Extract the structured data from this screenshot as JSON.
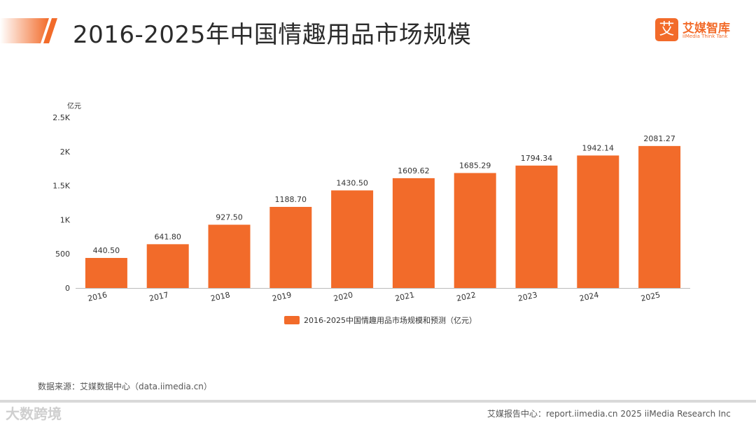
{
  "header": {
    "title": "2016-2025年中国情趣用品市场规模",
    "logo_mark": "艾",
    "logo_name": "艾媒智库",
    "logo_sub": "iiMedia Think Tank"
  },
  "chart_data": {
    "type": "bar",
    "title": "2016-2025年中国情趣用品市场规模",
    "ylabel": "亿元",
    "xlabel": "",
    "ylim": [
      0,
      2500
    ],
    "yticks": [
      0,
      500,
      1000,
      1500,
      2000,
      2500
    ],
    "ytick_labels": [
      "0",
      "500",
      "1K",
      "1.5K",
      "2K",
      "2.5K"
    ],
    "categories": [
      "2016",
      "2017",
      "2018",
      "2019",
      "2020",
      "2021",
      "2022",
      "2023",
      "2024",
      "2025"
    ],
    "series": [
      {
        "name": "2016-2025中国情趣用品市场规模和预测（亿元）",
        "values": [
          440.5,
          641.8,
          927.5,
          1188.7,
          1430.5,
          1609.62,
          1685.29,
          1794.34,
          1942.14,
          2081.27
        ],
        "labels": [
          "440.50",
          "641.80",
          "927.50",
          "1188.70",
          "1430.50",
          "1609.62",
          "1685.29",
          "1794.34",
          "1942.14",
          "2081.27"
        ]
      }
    ],
    "legend_position": "bottom",
    "grid": false,
    "colors": {
      "bar": "#f26b2a"
    }
  },
  "footer": {
    "source": "数据来源：艾媒数据中心（data.iimedia.cn）",
    "report": "艾媒报告中心：report.iimedia.cn  2025 iiMedia Research Inc",
    "watermark": "大数跨境"
  }
}
